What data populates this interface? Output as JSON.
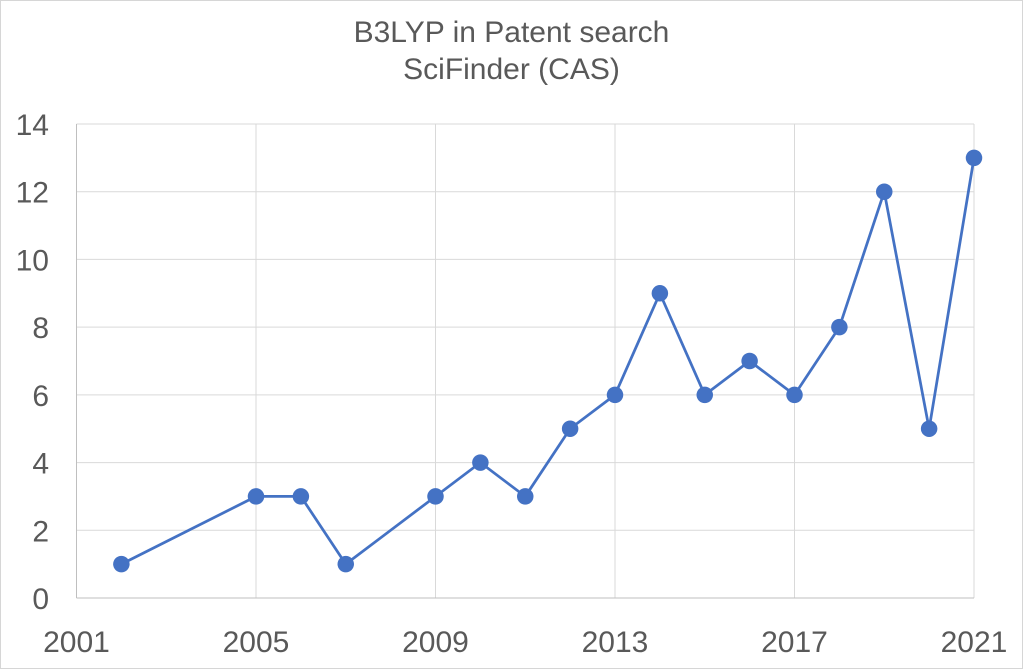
{
  "title": {
    "line1": "B3LYP in Patent search",
    "line2": "SciFinder (CAS)"
  },
  "chart_data": {
    "type": "line",
    "title": "B3LYP in Patent search",
    "subtitle": "SciFinder (CAS)",
    "xlabel": "",
    "ylabel": "",
    "x": [
      2002,
      2005,
      2006,
      2007,
      2009,
      2010,
      2011,
      2012,
      2013,
      2014,
      2015,
      2016,
      2017,
      2018,
      2019,
      2020,
      2021
    ],
    "y": [
      1,
      3,
      3,
      1,
      3,
      4,
      3,
      5,
      6,
      9,
      6,
      7,
      6,
      8,
      12,
      5,
      13
    ],
    "missing_years": [
      2001,
      2003,
      2004,
      2008
    ],
    "x_ticks": [
      2001,
      2005,
      2009,
      2013,
      2017,
      2021
    ],
    "y_ticks": [
      0,
      2,
      4,
      6,
      8,
      10,
      12,
      14
    ],
    "xlim": [
      2001,
      2021
    ],
    "ylim": [
      0,
      14
    ],
    "grid": true,
    "legend": false,
    "marker": "circle",
    "colors": {
      "series": "#4472C4",
      "grid": "#D9D9D9",
      "axis": "#BFBFBF",
      "text": "#595959"
    }
  }
}
